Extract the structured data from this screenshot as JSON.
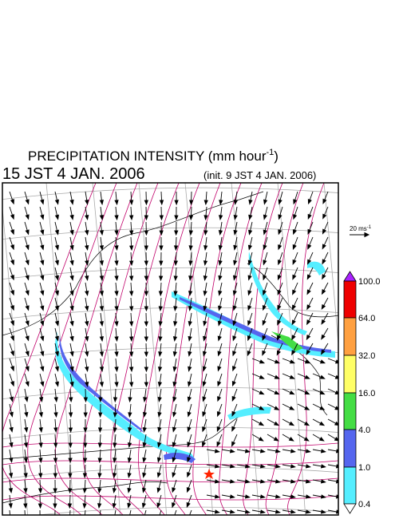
{
  "header": {
    "title": "PRECIPITATION INTENSITY (mm hour",
    "title_sup": "-1",
    "title_end": ")",
    "valid_time": "15 JST 4 JAN. 2006",
    "init_time": "(init. 9 JST 4 JAN. 2006)"
  },
  "wind_reference": {
    "label": "20 ms",
    "label_sup": "-1"
  },
  "colorbar": {
    "labels": [
      "100.0",
      "64.0",
      "32.0",
      "16.0",
      "4.0",
      "1.0",
      "0.4"
    ]
  }
}
